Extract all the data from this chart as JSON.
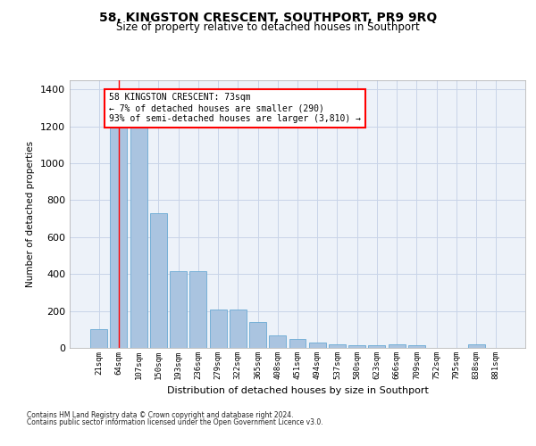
{
  "title": "58, KINGSTON CRESCENT, SOUTHPORT, PR9 9RQ",
  "subtitle": "Size of property relative to detached houses in Southport",
  "xlabel": "Distribution of detached houses by size in Southport",
  "ylabel": "Number of detached properties",
  "categories": [
    "21sqm",
    "64sqm",
    "107sqm",
    "150sqm",
    "193sqm",
    "236sqm",
    "279sqm",
    "322sqm",
    "365sqm",
    "408sqm",
    "451sqm",
    "494sqm",
    "537sqm",
    "580sqm",
    "623sqm",
    "666sqm",
    "709sqm",
    "752sqm",
    "795sqm",
    "838sqm",
    "881sqm"
  ],
  "values": [
    100,
    1195,
    1195,
    730,
    415,
    415,
    210,
    210,
    140,
    70,
    50,
    30,
    20,
    15,
    15,
    20,
    15,
    0,
    0,
    20,
    0
  ],
  "bar_color": "#aac4e0",
  "bar_edge_color": "#6aaad4",
  "grid_color": "#c8d4e8",
  "bg_color": "#edf2f9",
  "marker_bin": 1,
  "ylim_max": 1450,
  "yticks": [
    0,
    200,
    400,
    600,
    800,
    1000,
    1200,
    1400
  ],
  "annotation_line1": "58 KINGSTON CRESCENT: 73sqm",
  "annotation_line2": "← 7% of detached houses are smaller (290)",
  "annotation_line3": "93% of semi-detached houses are larger (3,810) →",
  "footnote1": "Contains HM Land Registry data © Crown copyright and database right 2024.",
  "footnote2": "Contains public sector information licensed under the Open Government Licence v3.0."
}
